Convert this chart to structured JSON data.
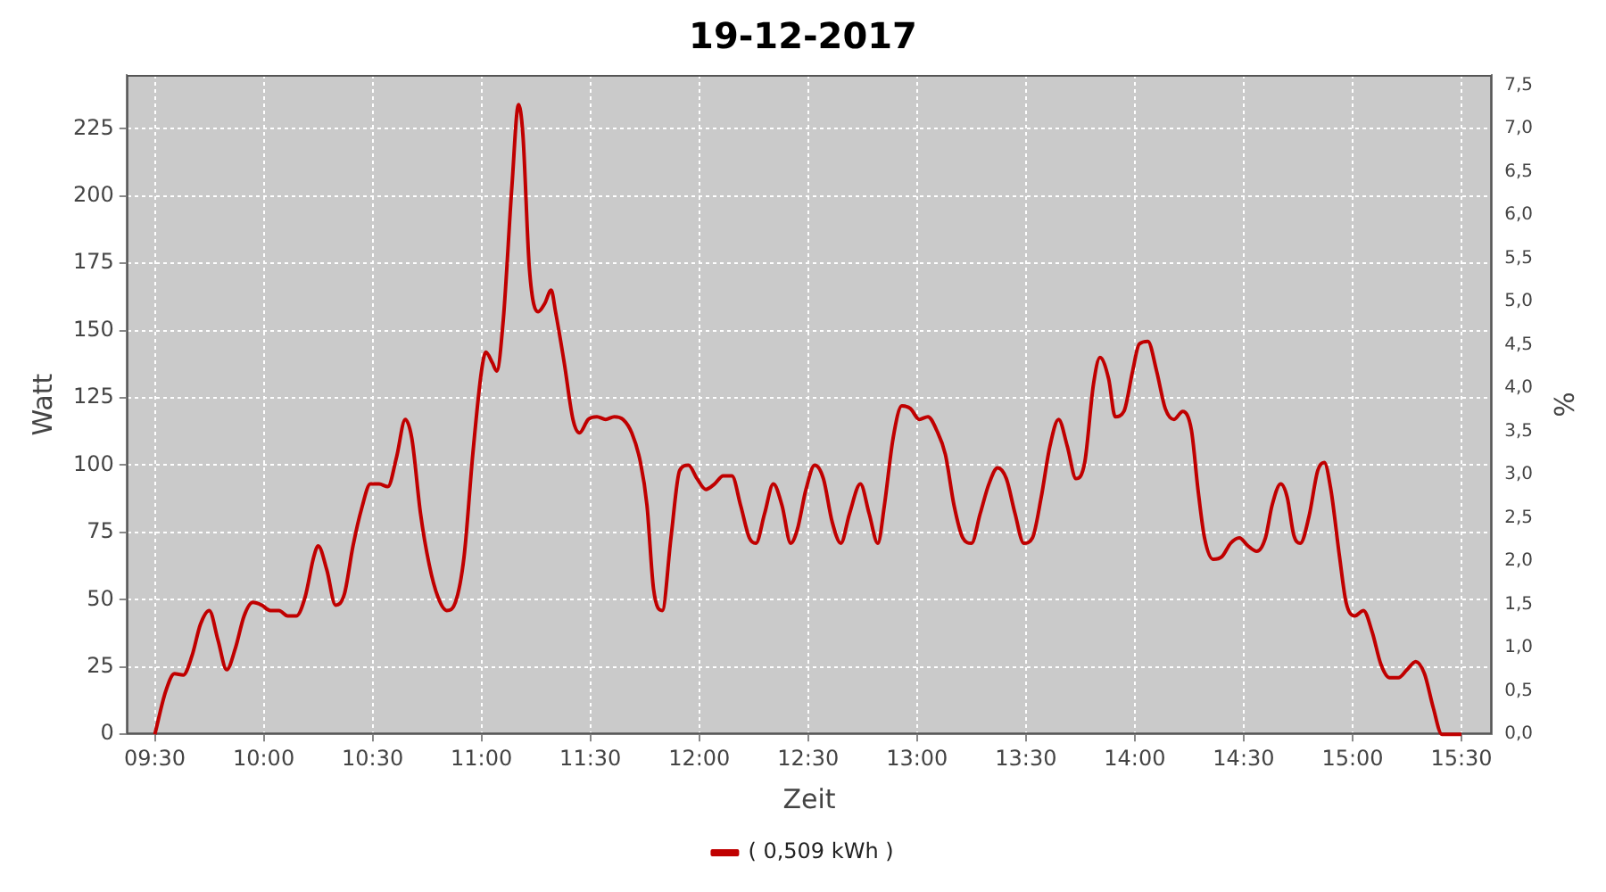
{
  "chart_data": {
    "type": "line",
    "title": "19-12-2017",
    "xlabel": "Zeit",
    "ylabel": "Watt",
    "y2label": "%",
    "x": [
      9.5,
      9.55,
      9.59,
      9.63,
      9.67,
      9.71,
      9.75,
      9.79,
      9.83,
      9.87,
      9.91,
      9.95,
      9.99,
      10.03,
      10.07,
      10.11,
      10.15,
      10.19,
      10.23,
      10.25,
      10.29,
      10.33,
      10.37,
      10.41,
      10.45,
      10.49,
      10.53,
      10.57,
      10.61,
      10.65,
      10.68,
      10.72,
      10.76,
      10.8,
      10.84,
      10.88,
      10.92,
      10.96,
      11.0,
      11.02,
      11.05,
      11.07,
      11.1,
      11.14,
      11.17,
      11.19,
      11.22,
      11.26,
      11.29,
      11.32,
      11.34,
      11.38,
      11.42,
      11.45,
      11.49,
      11.53,
      11.57,
      11.61,
      11.65,
      11.69,
      11.73,
      11.76,
      11.79,
      11.83,
      11.87,
      11.91,
      11.95,
      11.99,
      12.03,
      12.07,
      12.11,
      12.15,
      12.19,
      12.23,
      12.26,
      12.3,
      12.34,
      12.38,
      12.42,
      12.45,
      12.49,
      12.53,
      12.57,
      12.61,
      12.65,
      12.69,
      12.74,
      12.78,
      12.82,
      12.85,
      12.89,
      12.93,
      12.97,
      13.01,
      13.05,
      13.09,
      13.13,
      13.17,
      13.21,
      13.25,
      13.29,
      13.33,
      13.37,
      13.41,
      13.45,
      13.49,
      13.53,
      13.57,
      13.61,
      13.65,
      13.69,
      13.73,
      13.77,
      13.81,
      13.84,
      13.88,
      13.91,
      13.95,
      13.99,
      14.02,
      14.06,
      14.1,
      14.14,
      14.18,
      14.22,
      14.26,
      14.29,
      14.32,
      14.36,
      14.4,
      14.44,
      14.48,
      14.52,
      14.56,
      14.6,
      14.63,
      14.67,
      14.7,
      14.73,
      14.76,
      14.8,
      14.84,
      14.87,
      14.9,
      14.94,
      14.97,
      15.01,
      15.05,
      15.09,
      15.13,
      15.17,
      15.21,
      15.25,
      15.29,
      15.33,
      15.37,
      15.41,
      15.5
    ],
    "series": [
      {
        "name": "( 0,509 kWh )",
        "color": "#c00000",
        "values": [
          0,
          16,
          22.5,
          22,
          29,
          41,
          46,
          35,
          24,
          32,
          44,
          49,
          48,
          46,
          46,
          44,
          44,
          51,
          66,
          70,
          61,
          48,
          52,
          70,
          84,
          93,
          93,
          92,
          103,
          117,
          110,
          82,
          63,
          51,
          46,
          49,
          66,
          104,
          135,
          142,
          138,
          135,
          154,
          204,
          234,
          223,
          173,
          157,
          160,
          165,
          157,
          138,
          117,
          112,
          117,
          118,
          117,
          118,
          117,
          112,
          101,
          85,
          54,
          46,
          73,
          98,
          100,
          95,
          91,
          93,
          96,
          96,
          85,
          73,
          71,
          82,
          93,
          85,
          71,
          76,
          91,
          100,
          95,
          79,
          71,
          82,
          93,
          82,
          71,
          85,
          110,
          122,
          121,
          117,
          118,
          113,
          104,
          85,
          73,
          71,
          82,
          93,
          99,
          95,
          82,
          71,
          73,
          88,
          107,
          117,
          107,
          95,
          101,
          130,
          140,
          132,
          118,
          120,
          135,
          145,
          146,
          135,
          121,
          117,
          120,
          113,
          91,
          73,
          65,
          66,
          71,
          73,
          70,
          68,
          73,
          85,
          93,
          88,
          74,
          71,
          81,
          98,
          101,
          91,
          66,
          49,
          44,
          46,
          38,
          26,
          21,
          21,
          24,
          27,
          22.5,
          10,
          0,
          0
        ]
      }
    ],
    "xlim": [
      9.37,
      15.64
    ],
    "xticks": [
      {
        "value": 9.5,
        "label": "09:30"
      },
      {
        "value": 10,
        "label": "10:00"
      },
      {
        "value": 10.5,
        "label": "10:30"
      },
      {
        "value": 11,
        "label": "11:00"
      },
      {
        "value": 11.5,
        "label": "11:30"
      },
      {
        "value": 12,
        "label": "12:00"
      },
      {
        "value": 12.5,
        "label": "12:30"
      },
      {
        "value": 13,
        "label": "13:00"
      },
      {
        "value": 13.5,
        "label": "13:30"
      },
      {
        "value": 14,
        "label": "14:00"
      },
      {
        "value": 14.5,
        "label": "14:30"
      },
      {
        "value": 15,
        "label": "15:00"
      },
      {
        "value": 15.5,
        "label": "15:30"
      }
    ],
    "ylim": [
      0,
      245
    ],
    "yticks": [
      0,
      25,
      50,
      75,
      100,
      125,
      150,
      175,
      200,
      225
    ],
    "y2lim": [
      0,
      7.62
    ],
    "y2ticks": [
      {
        "value": 0,
        "label": "0,0"
      },
      {
        "value": 0.5,
        "label": "0,5"
      },
      {
        "value": 1,
        "label": "1,0"
      },
      {
        "value": 1.5,
        "label": "1,5"
      },
      {
        "value": 2,
        "label": "2,0"
      },
      {
        "value": 2.5,
        "label": "2,5"
      },
      {
        "value": 3,
        "label": "3,0"
      },
      {
        "value": 3.5,
        "label": "3,5"
      },
      {
        "value": 4,
        "label": "4,0"
      },
      {
        "value": 4.5,
        "label": "4,5"
      },
      {
        "value": 5,
        "label": "5,0"
      },
      {
        "value": 5.5,
        "label": "5,5"
      },
      {
        "value": 6,
        "label": "6,0"
      },
      {
        "value": 6.5,
        "label": "6,5"
      },
      {
        "value": 7,
        "label": "7,0"
      },
      {
        "value": 7.5,
        "label": "7,5"
      }
    ],
    "grid": true,
    "legend": "bottom",
    "marker": "none",
    "line_style": "solid"
  }
}
